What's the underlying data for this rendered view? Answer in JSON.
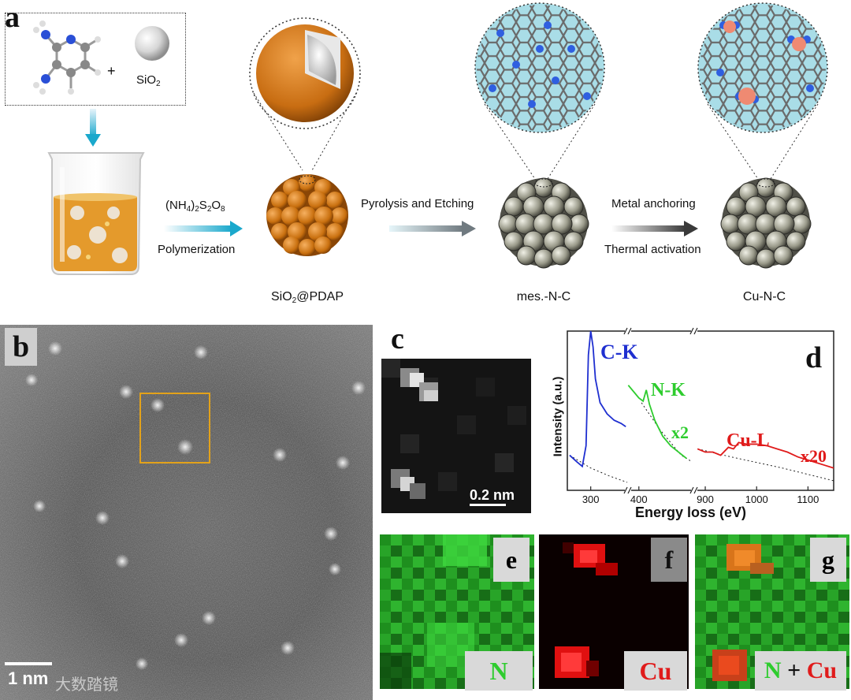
{
  "panels": {
    "a": {
      "letter": "a",
      "reactant_plus": "+",
      "sio2_label": "SiO",
      "sio2_sub": "2",
      "reagent_prefix": "(NH",
      "reagent_sub1": "4",
      "reagent_mid1": ")",
      "reagent_sub2": "2",
      "reagent_mid2": "S",
      "reagent_sub3": "2",
      "reagent_mid3": "O",
      "reagent_sub4": "8",
      "step1_label": "Polymerization",
      "step2_label": "Pyrolysis and Etching",
      "step3_top": "Metal anchoring",
      "step3_bottom": "Thermal activation",
      "product1_main": "SiO",
      "product1_sub": "2",
      "product1_rest": "@PDAP",
      "product2": "mes.-N-C",
      "product3": "Cu-N-C"
    },
    "b": {
      "letter": "b",
      "scale": "1 nm"
    },
    "c": {
      "letter": "c",
      "scale": "0.2 nm"
    },
    "d": {
      "letter": "d"
    },
    "e": {
      "letter": "e",
      "tag": "N"
    },
    "f": {
      "letter": "f",
      "tag": "Cu"
    },
    "g": {
      "letter": "g",
      "tag_n": "N",
      "tag_plus": " + ",
      "tag_cu": "Cu"
    },
    "watermark": "大数踏镜"
  },
  "colors": {
    "ck": "#1f2fd0",
    "nk": "#2ecc2e",
    "cul": "#e01b1b",
    "box": "#e3a21a"
  },
  "chart_data": {
    "type": "line",
    "title": "",
    "xlabel": "Energy loss (eV)",
    "ylabel": "Intensity (a.u.)",
    "broken_axis": true,
    "x_ticks": [
      300,
      400,
      900,
      1000,
      1100
    ],
    "series": [
      {
        "name": "C-K",
        "multiplier": "",
        "x": [
          255,
          270,
          282,
          290,
          295,
          300,
          305,
          310,
          320,
          335,
          350,
          365,
          375
        ],
        "y": [
          0.22,
          0.18,
          0.15,
          0.28,
          0.85,
          1.0,
          0.9,
          0.7,
          0.55,
          0.48,
          0.44,
          0.42,
          0.4
        ]
      },
      {
        "name": "N-K",
        "multiplier": "x2",
        "x": [
          380,
          390,
          400,
          408,
          414,
          420,
          430,
          445,
          460,
          475,
          490
        ],
        "y": [
          0.66,
          0.62,
          0.58,
          0.56,
          0.63,
          0.54,
          0.44,
          0.34,
          0.28,
          0.24,
          0.2
        ]
      },
      {
        "name": "Cu-L",
        "multiplier": "x20",
        "x": [
          885,
          900,
          915,
          930,
          945,
          955,
          965,
          980,
          1000,
          1020,
          1040,
          1060,
          1080,
          1100,
          1130,
          1150
        ],
        "y": [
          0.26,
          0.24,
          0.24,
          0.22,
          0.27,
          0.26,
          0.3,
          0.29,
          0.29,
          0.28,
          0.26,
          0.24,
          0.21,
          0.19,
          0.16,
          0.14
        ]
      }
    ]
  }
}
